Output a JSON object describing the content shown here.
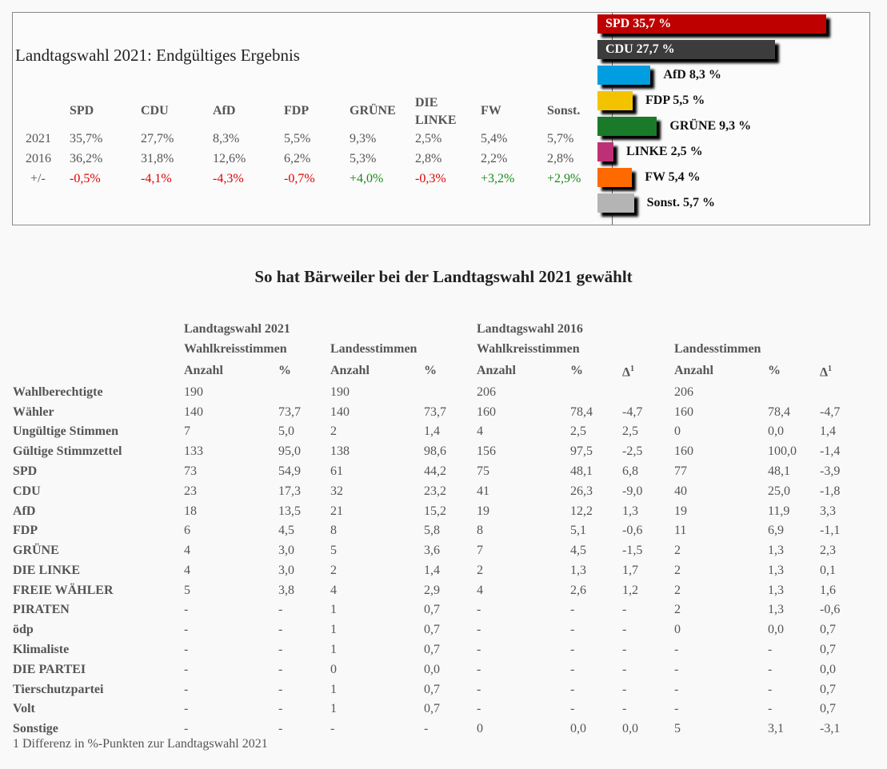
{
  "summary": {
    "title": "Landtagswahl 2021: Endgültiges Ergebnis",
    "parties": [
      "SPD",
      "CDU",
      "AfD",
      "FDP",
      "GRÜNE",
      "DIE\nLINKE",
      "FW",
      "Sonst."
    ],
    "rows": [
      {
        "label": "2021",
        "values": [
          "35,7%",
          "27,7%",
          "8,3%",
          "5,5%",
          "9,3%",
          "2,5%",
          "5,4%",
          "5,7%"
        ]
      },
      {
        "label": "2016",
        "values": [
          "36,2%",
          "31,8%",
          "12,6%",
          "6,2%",
          "5,3%",
          "2,8%",
          "2,2%",
          "2,8%"
        ]
      },
      {
        "label": "+/-",
        "values": [
          "-0,5%",
          "-4,1%",
          "-4,3%",
          "-0,7%",
          "+4,0%",
          "-0,3%",
          "+3,2%",
          "+2,9%"
        ]
      }
    ]
  },
  "chart_data": {
    "type": "bar",
    "orientation": "horizontal",
    "categories": [
      "SPD",
      "CDU",
      "AfD",
      "FDP",
      "GRÜNE",
      "LINKE",
      "FW",
      "Sonst."
    ],
    "values": [
      35.7,
      27.7,
      8.3,
      5.5,
      9.3,
      2.5,
      5.4,
      5.7
    ],
    "labels": [
      "SPD  35,7 %",
      "CDU  27,7 %",
      "AfD  8,3 %",
      "FDP  5,5 %",
      "GRÜNE  9,3 %",
      "LINKE  2,5 %",
      "FW  5,4 %",
      "Sonst. 5,7 %"
    ],
    "colors": [
      "#be0000",
      "#3c3c3c",
      "#009ee0",
      "#f4c300",
      "#1a7a2a",
      "#be3075",
      "#ff6a00",
      "#b4b4b4"
    ]
  },
  "results": {
    "heading": "So hat Bärweiler bei der Landtagswahl 2021 gewählt",
    "header1": {
      "y2021": "Landtagswahl 2021",
      "y2016": "Landtagswahl 2016"
    },
    "header2": {
      "wk2021": "Wahlkreisstimmen",
      "ls2021": "Landesstimmen",
      "wk2016": "Wahlkreisstimmen",
      "ls2016": "Landesstimmen"
    },
    "columns": [
      "Anzahl",
      "%",
      "Anzahl",
      "%",
      "Anzahl",
      "%",
      "Δ1",
      "Anzahl",
      "%",
      "Δ1"
    ],
    "rows": [
      [
        "Wahlberechtigte",
        "190",
        "",
        "190",
        "",
        "206",
        "",
        "",
        "206",
        "",
        ""
      ],
      [
        "Wähler",
        "140",
        "73,7",
        "140",
        "73,7",
        "160",
        "78,4",
        "-4,7",
        "160",
        "78,4",
        "-4,7"
      ],
      [
        "Ungültige Stimmen",
        "7",
        "5,0",
        "2",
        "1,4",
        "4",
        "2,5",
        "2,5",
        "0",
        "0,0",
        "1,4"
      ],
      [
        "Gültige Stimmzettel",
        "133",
        "95,0",
        "138",
        "98,6",
        "156",
        "97,5",
        "-2,5",
        "160",
        "100,0",
        "-1,4"
      ],
      [
        "SPD",
        "73",
        "54,9",
        "61",
        "44,2",
        "75",
        "48,1",
        "6,8",
        "77",
        "48,1",
        "-3,9"
      ],
      [
        "CDU",
        "23",
        "17,3",
        "32",
        "23,2",
        "41",
        "26,3",
        "-9,0",
        "40",
        "25,0",
        "-1,8"
      ],
      [
        "AfD",
        "18",
        "13,5",
        "21",
        "15,2",
        "19",
        "12,2",
        "1,3",
        "19",
        "11,9",
        "3,3"
      ],
      [
        "FDP",
        "6",
        "4,5",
        "8",
        "5,8",
        "8",
        "5,1",
        "-0,6",
        "11",
        "6,9",
        "-1,1"
      ],
      [
        "GRÜNE",
        "4",
        "3,0",
        "5",
        "3,6",
        "7",
        "4,5",
        "-1,5",
        "2",
        "1,3",
        "2,3"
      ],
      [
        "DIE LINKE",
        "4",
        "3,0",
        "2",
        "1,4",
        "2",
        "1,3",
        "1,7",
        "2",
        "1,3",
        "0,1"
      ],
      [
        "FREIE WÄHLER",
        "5",
        "3,8",
        "4",
        "2,9",
        "4",
        "2,6",
        "1,2",
        "2",
        "1,3",
        "1,6"
      ],
      [
        "PIRATEN",
        "-",
        "-",
        "1",
        "0,7",
        "-",
        "-",
        "-",
        "2",
        "1,3",
        "-0,6"
      ],
      [
        "ödp",
        "-",
        "-",
        "1",
        "0,7",
        "-",
        "-",
        "-",
        "0",
        "0,0",
        "0,7"
      ],
      [
        "Klimaliste",
        "-",
        "-",
        "1",
        "0,7",
        "-",
        "-",
        "-",
        "-",
        "-",
        "0,7"
      ],
      [
        "DIE PARTEI",
        "-",
        "-",
        "0",
        "0,0",
        "-",
        "-",
        "-",
        "-",
        "-",
        "0,0"
      ],
      [
        "Tierschutzpartei",
        "-",
        "-",
        "1",
        "0,7",
        "-",
        "-",
        "-",
        "-",
        "-",
        "0,7"
      ],
      [
        "Volt",
        "-",
        "-",
        "1",
        "0,7",
        "-",
        "-",
        "-",
        "-",
        "-",
        "0,7"
      ],
      [
        "Sonstige",
        "-",
        "-",
        "-",
        "-",
        "0",
        "0,0",
        "0,0",
        "5",
        "3,1",
        "-3,1"
      ]
    ],
    "footnote": "1 Differenz in %-Punkten zur Landtagswahl 2021"
  }
}
